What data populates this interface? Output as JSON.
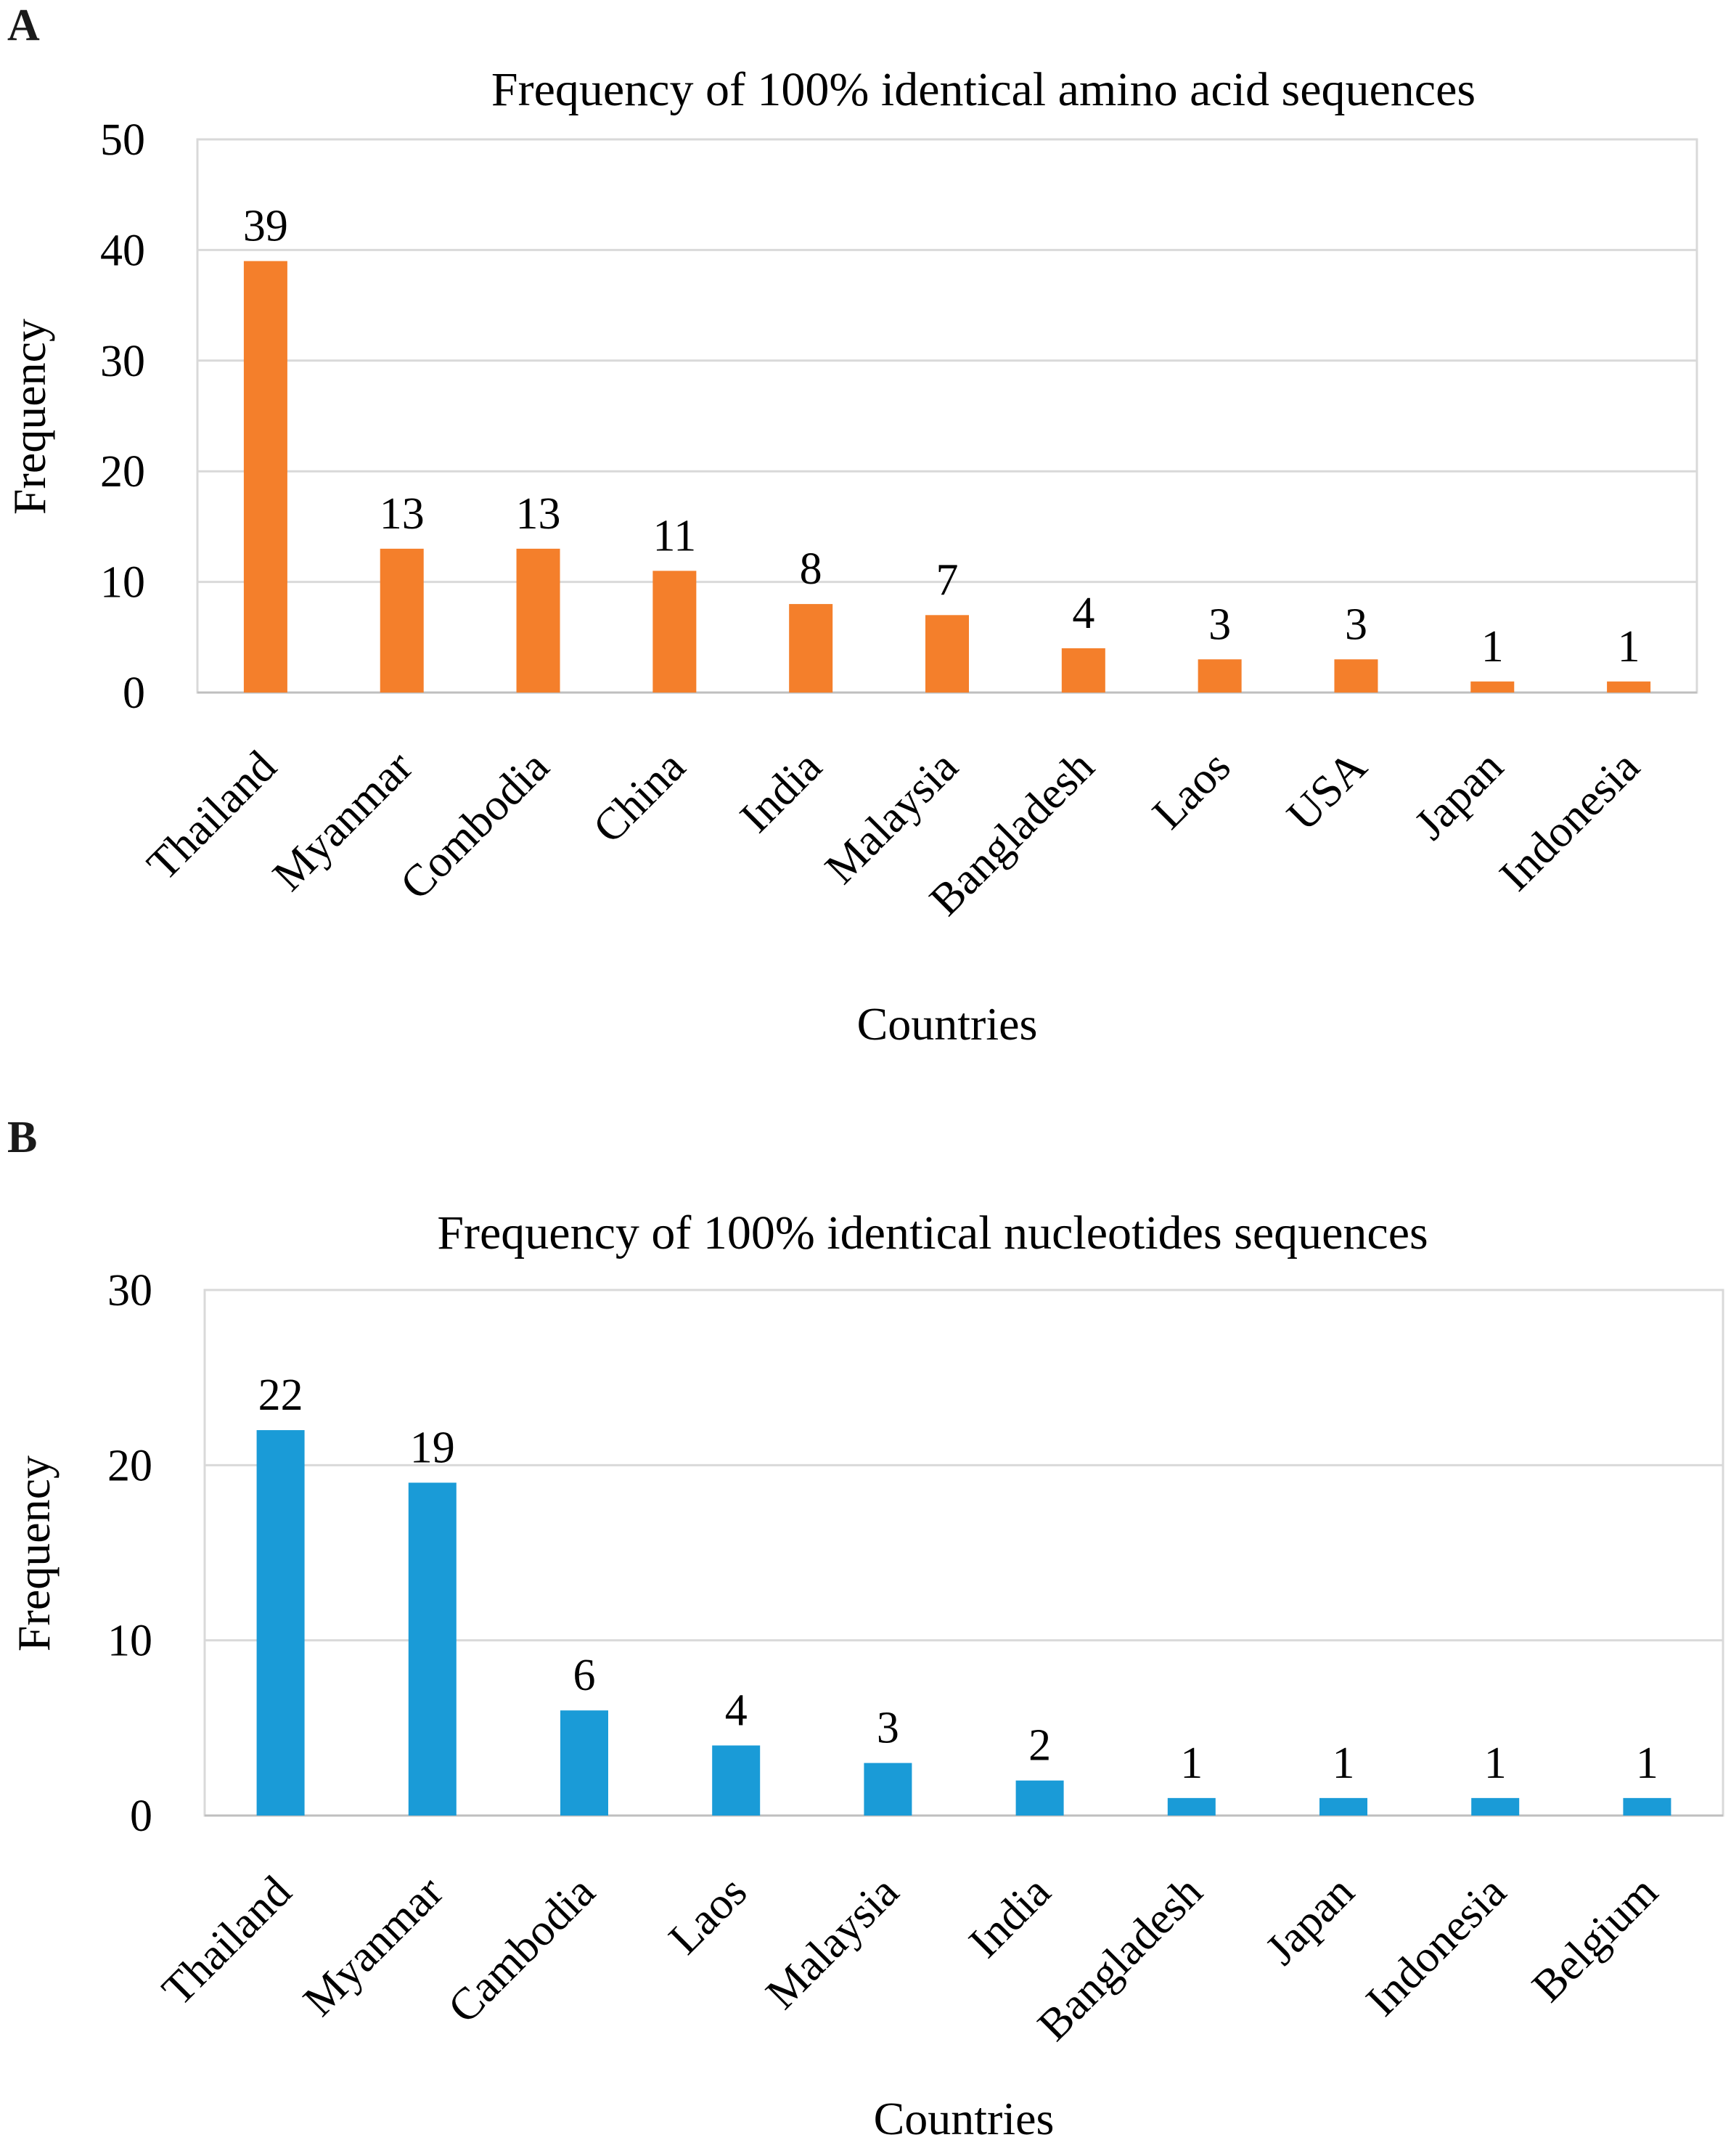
{
  "panels": {
    "a": {
      "letter": "A"
    },
    "b": {
      "letter": "B"
    }
  },
  "chart_data": [
    {
      "type": "bar",
      "title": "Frequency  of 100% identical amino acid sequences",
      "xlabel": "Countries",
      "ylabel": "Frequency",
      "categories": [
        "Thailand",
        "Myanmar",
        "Combodia",
        "China",
        "India",
        "Malaysia",
        "Bangladesh",
        "Laos",
        "USA",
        "Japan",
        "Indonesia"
      ],
      "values": [
        39,
        13,
        13,
        11,
        8,
        7,
        4,
        3,
        3,
        1,
        1
      ],
      "ylim": [
        0,
        50
      ],
      "yticks": [
        0,
        10,
        20,
        30,
        40,
        50
      ],
      "color": "#F47F2B",
      "grid": true,
      "legend": "none"
    },
    {
      "type": "bar",
      "title": "Frequency of 100% identical  nucleotides sequences",
      "xlabel": "Countries",
      "ylabel": "Frequency",
      "categories": [
        "Thailand",
        "Myanmar",
        "Cambodia",
        "Laos",
        "Malaysia",
        "India",
        "Bangladesh",
        "Japan",
        "Indonesia",
        "Belgium"
      ],
      "values": [
        22,
        19,
        6,
        4,
        3,
        2,
        1,
        1,
        1,
        1
      ],
      "ylim": [
        0,
        30
      ],
      "yticks": [
        0,
        10,
        20,
        30
      ],
      "color": "#1A9BD7",
      "grid": true,
      "legend": "none"
    }
  ]
}
